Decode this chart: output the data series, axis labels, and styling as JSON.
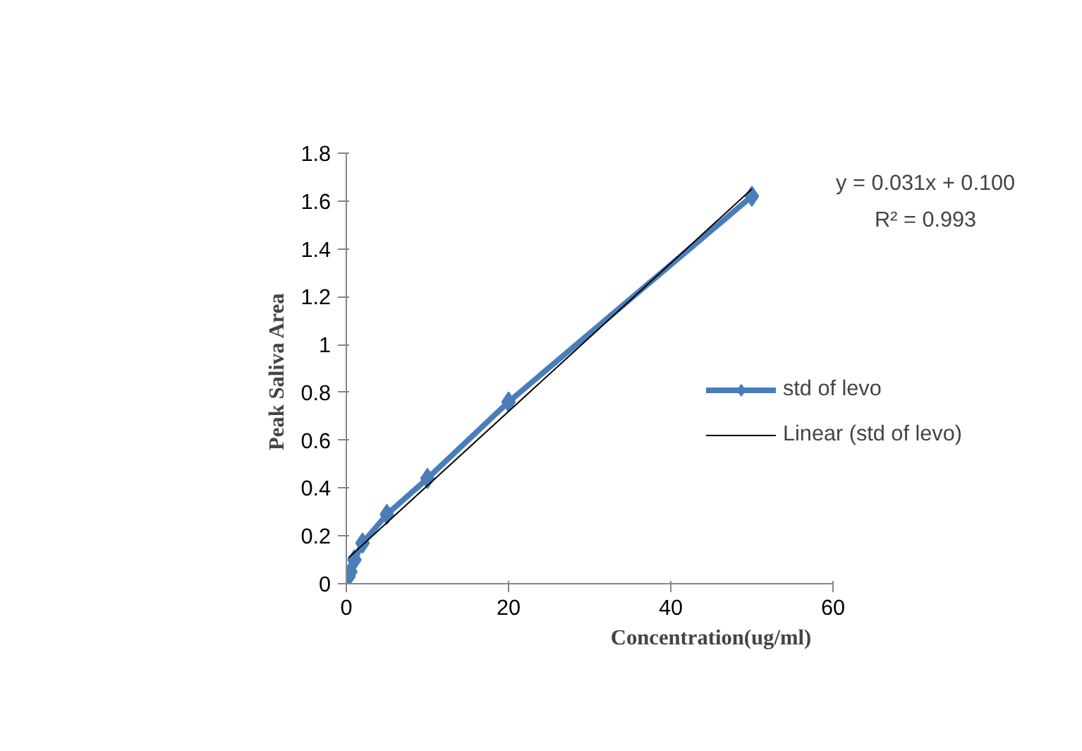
{
  "chart_data": {
    "type": "line",
    "xlabel": "Concentration(ug/ml)",
    "ylabel": "Peak  Saliva Area",
    "xlim": [
      0,
      60
    ],
    "xticks": [
      0,
      20,
      40,
      60
    ],
    "ylim": [
      0,
      1.8
    ],
    "yticks": [
      0,
      0.2,
      0.4,
      0.6,
      0.8,
      1,
      1.2,
      1.4,
      1.6,
      1.8
    ],
    "grid": false,
    "legend": "right",
    "marker": "diamond",
    "line_style": "solid",
    "series": [
      {
        "name": "std of levo",
        "color": "#4a7ebb",
        "x": [
          0.25,
          0.5,
          1,
          2,
          5,
          10,
          20,
          50
        ],
        "values": [
          0.03,
          0.05,
          0.1,
          0.17,
          0.29,
          0.44,
          0.76,
          1.62
        ]
      },
      {
        "name": "Linear (std of levo)",
        "type": "line",
        "marker": "none",
        "color": "#000000",
        "x": [
          0.25,
          50
        ],
        "values": [
          0.108,
          1.65
        ]
      }
    ],
    "annotations": [
      "y = 0.031x + 0.100",
      "R² = 0.993"
    ]
  }
}
